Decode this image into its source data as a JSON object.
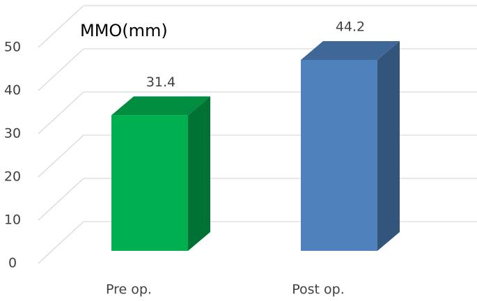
{
  "chart_data": {
    "type": "bar3d",
    "title": "MMO(mm)",
    "categories": [
      "Pre op.",
      "Post op."
    ],
    "values": [
      31.4,
      44.2
    ],
    "colors": [
      "#00b050",
      "#4f81bd"
    ],
    "ylim": [
      0,
      50
    ],
    "yticks": [
      0,
      10,
      20,
      30,
      40,
      50
    ],
    "grid": true
  }
}
